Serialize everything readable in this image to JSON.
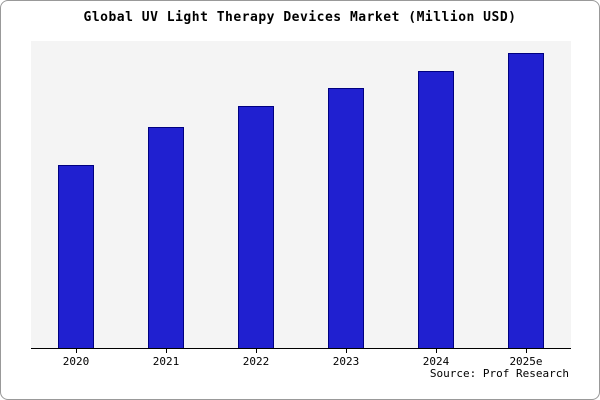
{
  "title": "Global UV Light Therapy Devices Market (Million USD)",
  "source": "Source: Prof Research",
  "colors": {
    "bar_fill": "#2020d0",
    "bar_border": "#000080",
    "plot_bg": "#f4f4f4",
    "frame_border": "#999999"
  },
  "chart_data": {
    "type": "bar",
    "categories": [
      "2020",
      "2021",
      "2022",
      "2023",
      "2024",
      "2025e"
    ],
    "values": [
      62,
      75,
      82,
      88,
      94,
      100
    ],
    "title": "Global UV Light Therapy Devices Market (Million USD)",
    "xlabel": "",
    "ylabel": "",
    "ylim": [
      0,
      104
    ],
    "grid": false,
    "legend": false,
    "y_axis_labels_visible": false
  }
}
